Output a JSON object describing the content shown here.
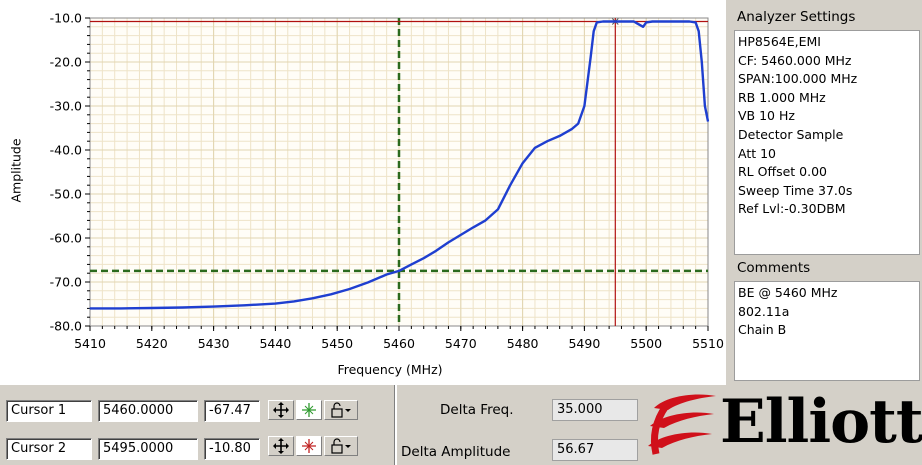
{
  "chart_data": {
    "type": "line",
    "xlabel": "Frequency (MHz)",
    "ylabel": "Amplitude",
    "xlim": [
      5410,
      5510
    ],
    "ylim": [
      -80,
      -10
    ],
    "x_ticks": [
      "5410",
      "5420",
      "5430",
      "5440",
      "5450",
      "5460",
      "5470",
      "5480",
      "5490",
      "5500",
      "5510"
    ],
    "y_ticks": [
      "-10.0",
      "-20.0",
      "-30.0",
      "-40.0",
      "-50.0",
      "-60.0",
      "-70.0",
      "-80.0"
    ],
    "grid": true,
    "series": [
      {
        "color": "#1f3fd0",
        "x": [
          5410,
          5415,
          5420,
          5425,
          5430,
          5435,
          5440,
          5443,
          5446,
          5449,
          5452,
          5455,
          5458,
          5460,
          5462,
          5464,
          5466,
          5468,
          5470,
          5472,
          5474,
          5476,
          5478,
          5480,
          5482,
          5484,
          5486,
          5488,
          5489,
          5490,
          5491,
          5491.5,
          5492,
          5493,
          5495,
          5498,
          5499.5,
          5500,
          5501,
          5504,
          5507,
          5508,
          5508.5,
          5509,
          5509.5,
          5510
        ],
        "y": [
          -76.0,
          -76.0,
          -75.9,
          -75.8,
          -75.6,
          -75.3,
          -74.9,
          -74.4,
          -73.7,
          -72.8,
          -71.6,
          -70.1,
          -68.3,
          -67.47,
          -66.0,
          -64.6,
          -62.9,
          -61.0,
          -59.3,
          -57.6,
          -56.0,
          -53.5,
          -48.0,
          -43.0,
          -39.5,
          -38.0,
          -36.8,
          -35.2,
          -34.0,
          -30.0,
          -19.0,
          -13.0,
          -11.0,
          -10.8,
          -10.8,
          -10.8,
          -12.0,
          -11.0,
          -10.8,
          -10.8,
          -10.8,
          -11.0,
          -13.0,
          -20.0,
          -30.0,
          -33.5
        ]
      }
    ],
    "cursors": [
      {
        "name": "Cursor 1",
        "x": 5460.0,
        "y": -67.47,
        "color": "#2b6a1e"
      },
      {
        "name": "Cursor 2",
        "x": 5495.0,
        "y": -10.8,
        "color": "#b01010"
      }
    ]
  },
  "settings": {
    "title": "Analyzer Settings",
    "lines": [
      "HP8564E,EMI",
      "CF: 5460.000 MHz",
      "SPAN:100.000 MHz",
      "RB 1.000 MHz",
      "VB 10 Hz",
      "Detector Sample",
      "Att 10",
      "RL Offset 0.00",
      "Sweep Time 37.0s",
      "Ref Lvl:-0.30DBM"
    ]
  },
  "comments": {
    "title": "Comments",
    "lines": [
      "BE @ 5460 MHz",
      "802.11a",
      "Chain B"
    ]
  },
  "cursors": {
    "c1": {
      "label": "Cursor 1",
      "freq": "5460.0000",
      "amp": "-67.47"
    },
    "c2": {
      "label": "Cursor 2",
      "freq": "5495.0000",
      "amp": "-10.80"
    }
  },
  "delta": {
    "freq_label": "Delta Freq.",
    "freq_value": "35.000",
    "amp_label": "Delta Amplitude",
    "amp_value": "56.67"
  },
  "logo": {
    "text": "Elliott",
    "color": "#d0101a"
  }
}
